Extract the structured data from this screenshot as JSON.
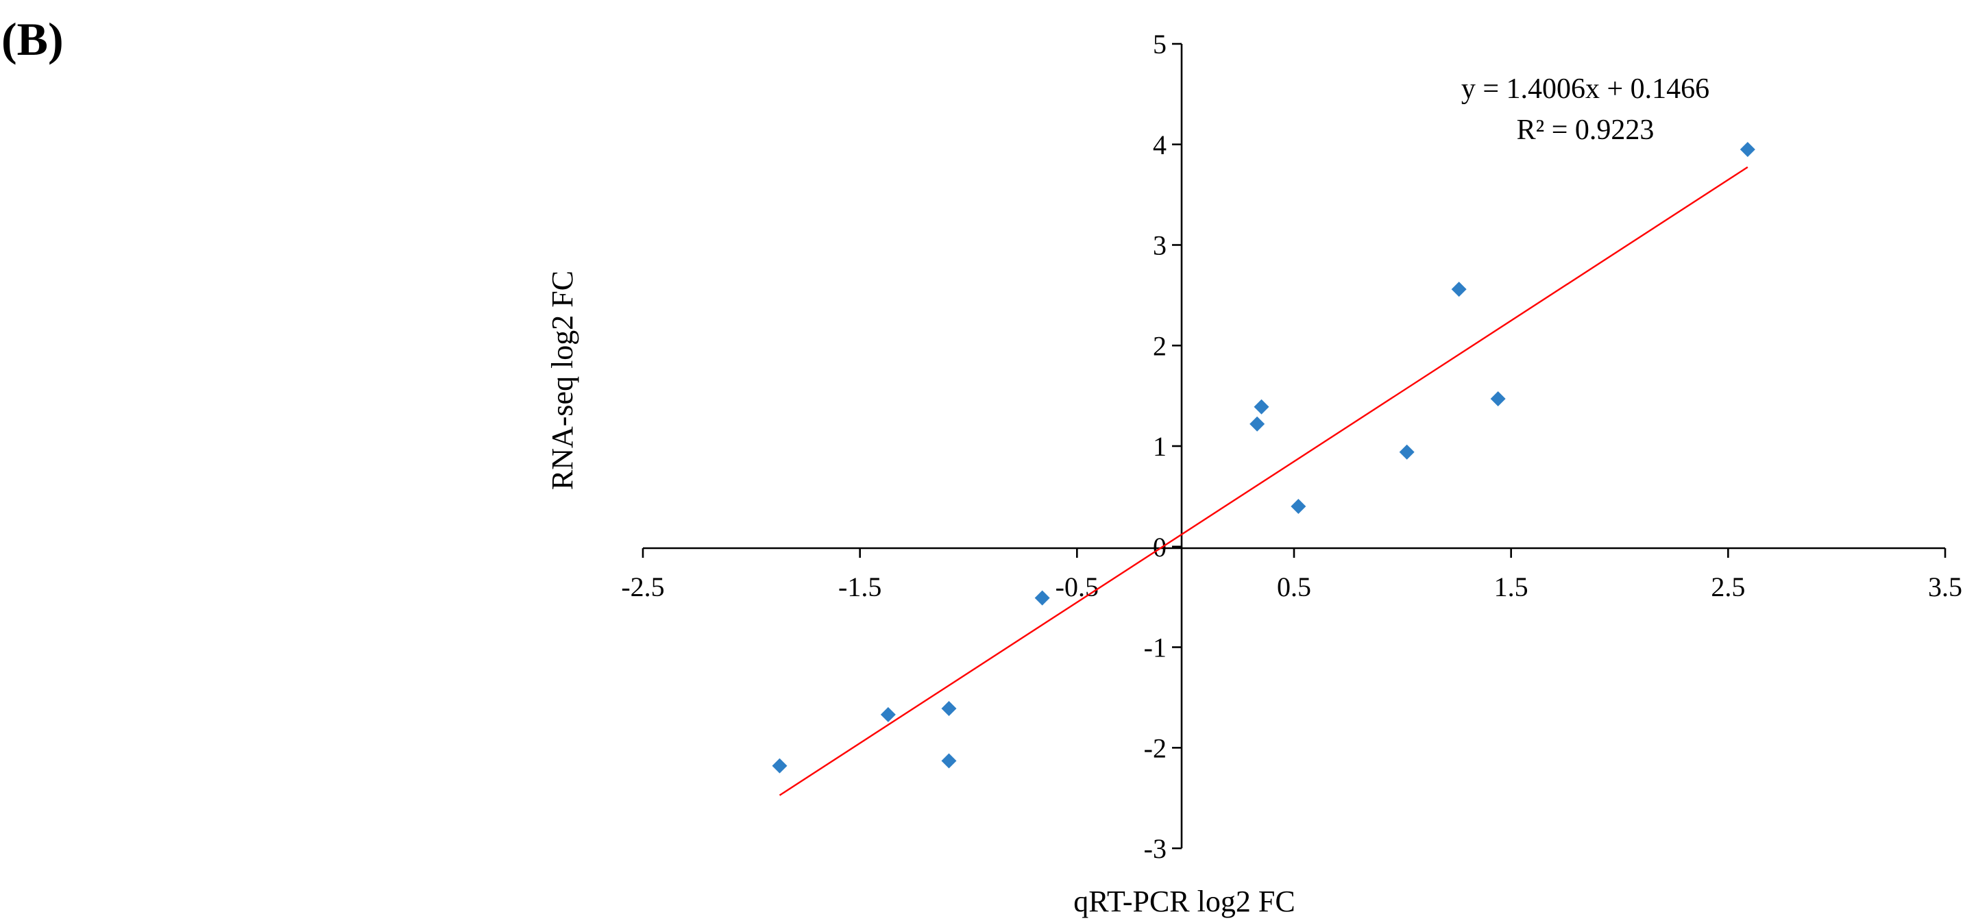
{
  "panel_label": "(B)",
  "chart_data": {
    "type": "scatter",
    "xlabel": "qRT-PCR log2 FC",
    "ylabel": "RNA-seq log2 FC",
    "xlim": [
      -2.5,
      3.5
    ],
    "ylim": [
      -3,
      5
    ],
    "x_ticks": [
      -2.5,
      -1.5,
      -0.5,
      0.5,
      1.5,
      2.5,
      3.5
    ],
    "x_tick_labels": [
      "-2.5",
      "-1.5",
      "-0.5",
      "0.5",
      "1.5",
      "2.5",
      "3.5"
    ],
    "y_ticks": [
      -3,
      -2,
      -1,
      0,
      1,
      2,
      3,
      4,
      5
    ],
    "y_tick_labels": [
      "-3",
      "-2",
      "-1",
      "0",
      "1",
      "2",
      "3",
      "4",
      "5"
    ],
    "grid": false,
    "marker": "diamond",
    "marker_color": "#2e7fc6",
    "trendline_color": "#ff0000",
    "points": [
      {
        "x": -1.87,
        "y": -2.18
      },
      {
        "x": -1.37,
        "y": -1.67
      },
      {
        "x": -1.09,
        "y": -1.61
      },
      {
        "x": -1.09,
        "y": -2.13
      },
      {
        "x": -0.66,
        "y": -0.51
      },
      {
        "x": 0.33,
        "y": 1.22
      },
      {
        "x": 0.35,
        "y": 1.39
      },
      {
        "x": 0.52,
        "y": 0.4
      },
      {
        "x": 1.02,
        "y": 0.94
      },
      {
        "x": 1.26,
        "y": 2.56
      },
      {
        "x": 1.44,
        "y": 1.47
      },
      {
        "x": 2.59,
        "y": 3.95
      }
    ],
    "trendline": {
      "slope": 1.4006,
      "intercept": 0.1466,
      "x_range": [
        -1.87,
        2.59
      ],
      "equation": "y = 1.4006x + 0.1466",
      "r_squared": "R² = 0.9223"
    }
  }
}
